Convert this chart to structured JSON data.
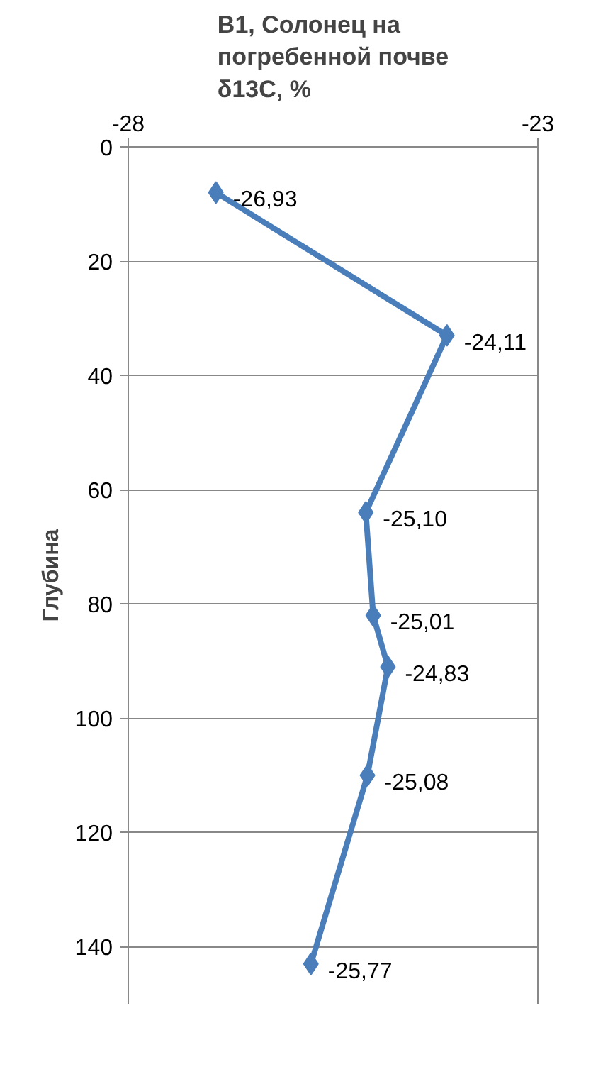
{
  "chart_data": {
    "type": "line",
    "orientation": "horizontal",
    "title": "В1, Солонец на\nпогребенной почве\nδ13С, %",
    "ylabel": "Глубина",
    "series": [
      {
        "color": "#4a7ebb",
        "x": [
          8,
          33,
          64,
          82,
          91,
          110,
          143
        ],
        "values": [
          -26.93,
          -24.11,
          -25.1,
          -25.01,
          -24.83,
          -25.08,
          -25.77
        ],
        "value_labels": [
          "-26,93",
          "-24,11",
          "-25,10",
          "-25,01",
          "-24,83",
          "-25,08",
          "-25,77"
        ]
      }
    ],
    "xlim": [
      -28,
      -23
    ],
    "xticks": [
      -28,
      -23
    ],
    "ylim": [
      150,
      0
    ],
    "yticks": [
      0,
      20,
      40,
      60,
      80,
      100,
      120,
      140
    ],
    "grid": "y",
    "marker": "diamond",
    "line_style": "solid"
  }
}
